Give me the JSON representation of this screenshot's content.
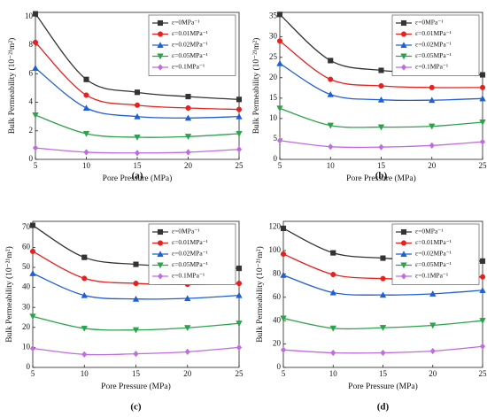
{
  "chart_data": [
    {
      "type": "line",
      "caption": "(a)",
      "x_label": "Pore Pressure (MPa)",
      "y_label": "Bulk Permeability (10⁻²¹m²)",
      "x": [
        5,
        10,
        15,
        20,
        25
      ],
      "xlim": [
        5,
        25
      ],
      "xticks": [
        5,
        10,
        15,
        20,
        25
      ],
      "ylim": [
        0,
        10.3
      ],
      "yticks": [
        0,
        2,
        4,
        6,
        8,
        10
      ],
      "legend": "upper right",
      "series": [
        {
          "name": "ε=0MPa⁻¹",
          "color": "#333333",
          "marker": "square",
          "values": [
            10.2,
            5.6,
            4.7,
            4.4,
            4.2
          ]
        },
        {
          "name": "ε=0.01MPa⁻¹",
          "color": "#e8201e",
          "marker": "circle",
          "values": [
            8.2,
            4.5,
            3.8,
            3.6,
            3.5
          ]
        },
        {
          "name": "ε=0.02MPa⁻¹",
          "color": "#1f5fd6",
          "marker": "triangle-up",
          "values": [
            6.4,
            3.6,
            3.0,
            2.9,
            3.0
          ]
        },
        {
          "name": "ε=0.05MPa⁻¹",
          "color": "#2ca24c",
          "marker": "triangle-down",
          "values": [
            3.1,
            1.8,
            1.55,
            1.6,
            1.8
          ]
        },
        {
          "name": "ε=0.1MPa⁻¹",
          "color": "#c06be0",
          "marker": "diamond",
          "values": [
            0.8,
            0.5,
            0.45,
            0.5,
            0.7
          ]
        }
      ]
    },
    {
      "type": "line",
      "caption": "(b)",
      "x_label": "Pore Pressure (MPa)",
      "y_label": "Bulk Permeability (10⁻²¹m²)",
      "x": [
        5,
        10,
        15,
        20,
        25
      ],
      "xlim": [
        5,
        25
      ],
      "xticks": [
        5,
        10,
        15,
        20,
        25
      ],
      "ylim": [
        0,
        36
      ],
      "yticks": [
        0,
        5,
        10,
        15,
        20,
        25,
        30,
        35
      ],
      "legend": "upper right",
      "series": [
        {
          "name": "ε=0MPa⁻¹",
          "color": "#333333",
          "marker": "square",
          "values": [
            35.5,
            24.2,
            21.8,
            21.2,
            20.7
          ]
        },
        {
          "name": "ε=0.01MPa⁻¹",
          "color": "#e8201e",
          "marker": "circle",
          "values": [
            29,
            19.6,
            18,
            17.6,
            17.6
          ]
        },
        {
          "name": "ε=0.02MPa⁻¹",
          "color": "#1f5fd6",
          "marker": "triangle-up",
          "values": [
            23.5,
            15.9,
            14.6,
            14.5,
            14.9
          ]
        },
        {
          "name": "ε=0.05MPa⁻¹",
          "color": "#2ca24c",
          "marker": "triangle-down",
          "values": [
            12.5,
            8.3,
            7.9,
            8.1,
            9.1
          ]
        },
        {
          "name": "ε=0.1MPa⁻¹",
          "color": "#c06be0",
          "marker": "diamond",
          "values": [
            4.6,
            3.1,
            3.0,
            3.4,
            4.3
          ]
        }
      ]
    },
    {
      "type": "line",
      "caption": "(c)",
      "x_label": "Pore Pressure (MPa)",
      "y_label": "Bulk Permeability (10⁻²¹m²)",
      "x": [
        5,
        10,
        15,
        20,
        25
      ],
      "xlim": [
        5,
        25
      ],
      "xticks": [
        5,
        10,
        15,
        20,
        25
      ],
      "ylim": [
        0,
        73
      ],
      "yticks": [
        0,
        10,
        20,
        30,
        40,
        50,
        60,
        70
      ],
      "legend": "upper right",
      "series": [
        {
          "name": "ε=0MPa⁻¹",
          "color": "#333333",
          "marker": "square",
          "values": [
            71,
            55,
            51.5,
            50.3,
            49.5
          ]
        },
        {
          "name": "ε=0.01MPa⁻¹",
          "color": "#e8201e",
          "marker": "circle",
          "values": [
            58,
            44.5,
            42,
            41.5,
            42
          ]
        },
        {
          "name": "ε=0.02MPa⁻¹",
          "color": "#1f5fd6",
          "marker": "triangle-up",
          "values": [
            47,
            36,
            34.2,
            34.5,
            36
          ]
        },
        {
          "name": "ε=0.05MPa⁻¹",
          "color": "#2ca24c",
          "marker": "triangle-down",
          "values": [
            25.5,
            19.5,
            18.7,
            19.8,
            22
          ]
        },
        {
          "name": "ε=0.1MPa⁻¹",
          "color": "#c06be0",
          "marker": "diamond",
          "values": [
            9.5,
            6.5,
            6.8,
            7.8,
            10
          ]
        }
      ]
    },
    {
      "type": "line",
      "caption": "(d)",
      "x_label": "Pore Pressure (MPa)",
      "y_label": "Bulk Permeability (10⁻²¹m²)",
      "x": [
        5,
        10,
        15,
        20,
        25
      ],
      "xlim": [
        5,
        25
      ],
      "xticks": [
        5,
        10,
        15,
        20,
        25
      ],
      "ylim": [
        0,
        125
      ],
      "yticks": [
        0,
        20,
        40,
        60,
        80,
        100,
        120
      ],
      "legend": "upper right",
      "series": [
        {
          "name": "ε=0MPa⁻¹",
          "color": "#333333",
          "marker": "square",
          "values": [
            119,
            98,
            93.5,
            91.5,
            91
          ]
        },
        {
          "name": "ε=0.01MPa⁻¹",
          "color": "#e8201e",
          "marker": "circle",
          "values": [
            97,
            79.5,
            76,
            76,
            77.5
          ]
        },
        {
          "name": "ε=0.02MPa⁻¹",
          "color": "#1f5fd6",
          "marker": "triangle-up",
          "values": [
            79,
            64,
            62,
            63,
            66
          ]
        },
        {
          "name": "ε=0.05MPa⁻¹",
          "color": "#2ca24c",
          "marker": "triangle-down",
          "values": [
            42,
            33.5,
            34,
            36,
            40
          ]
        },
        {
          "name": "ε=0.1MPa⁻¹",
          "color": "#c06be0",
          "marker": "diamond",
          "values": [
            15,
            12.5,
            12.5,
            14,
            18
          ]
        }
      ]
    }
  ]
}
